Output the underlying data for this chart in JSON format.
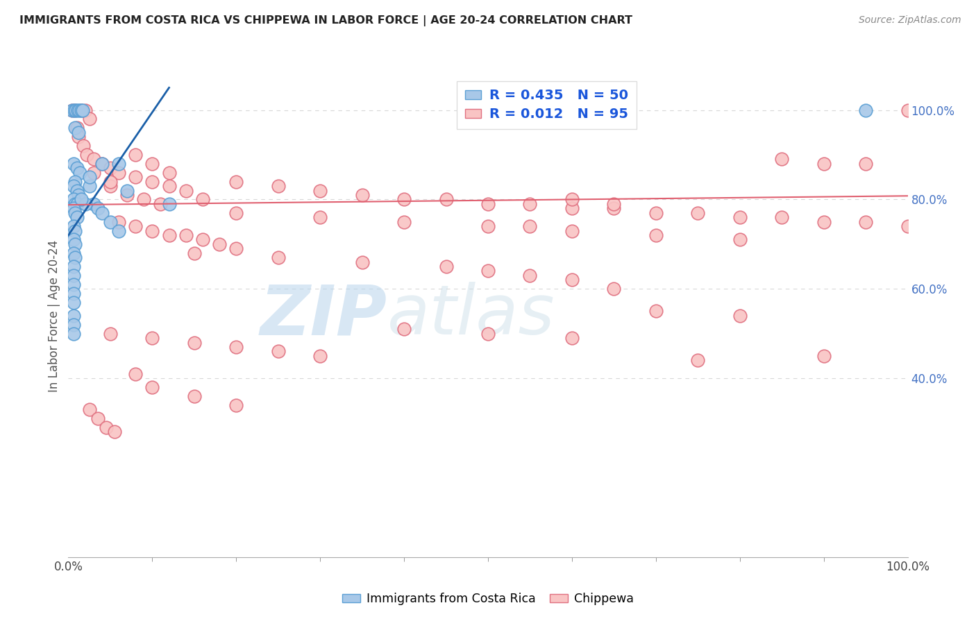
{
  "title": "IMMIGRANTS FROM COSTA RICA VS CHIPPEWA IN LABOR FORCE | AGE 20-24 CORRELATION CHART",
  "source": "Source: ZipAtlas.com",
  "ylabel": "In Labor Force | Age 20-24",
  "blue_R": 0.435,
  "blue_N": 50,
  "pink_R": 0.012,
  "pink_N": 95,
  "legend_label_blue": "Immigrants from Costa Rica",
  "legend_label_pink": "Chippewa",
  "blue_fill": "#a8c8e8",
  "blue_edge": "#5a9fd4",
  "pink_fill": "#f9c4c4",
  "pink_edge": "#e07080",
  "blue_line_color": "#1a5fa8",
  "pink_line_color": "#e06070",
  "watermark_zip": "ZIP",
  "watermark_atlas": "atlas",
  "bg_color": "#ffffff",
  "grid_color": "#d8d8d8",
  "axis_label_color": "#555555",
  "right_tick_color": "#4472c4",
  "blue_points_x": [
    0.005,
    0.007,
    0.009,
    0.011,
    0.013,
    0.015,
    0.017,
    0.008,
    0.012,
    0.006,
    0.01,
    0.014,
    0.008,
    0.006,
    0.01,
    0.012,
    0.006,
    0.008,
    0.01,
    0.006,
    0.008,
    0.01,
    0.006,
    0.008,
    0.006,
    0.008,
    0.006,
    0.008,
    0.006,
    0.006,
    0.006,
    0.006,
    0.006,
    0.006,
    0.006,
    0.006,
    0.025,
    0.03,
    0.035,
    0.04,
    0.05,
    0.06,
    0.04,
    0.025,
    0.06,
    0.07,
    0.12,
    0.02,
    0.015,
    0.95
  ],
  "blue_points_y": [
    1.0,
    1.0,
    1.0,
    1.0,
    1.0,
    1.0,
    1.0,
    0.96,
    0.95,
    0.88,
    0.87,
    0.86,
    0.84,
    0.83,
    0.82,
    0.81,
    0.8,
    0.79,
    0.79,
    0.78,
    0.77,
    0.76,
    0.74,
    0.73,
    0.71,
    0.7,
    0.68,
    0.67,
    0.65,
    0.63,
    0.61,
    0.59,
    0.57,
    0.54,
    0.52,
    0.5,
    0.83,
    0.79,
    0.78,
    0.77,
    0.75,
    0.73,
    0.88,
    0.85,
    0.88,
    0.82,
    0.79,
    0.79,
    0.8,
    1.0
  ],
  "pink_points_x": [
    0.005,
    0.008,
    0.015,
    0.02,
    0.025,
    0.01,
    0.012,
    0.018,
    0.022,
    0.03,
    0.04,
    0.05,
    0.06,
    0.08,
    0.1,
    0.12,
    0.14,
    0.16,
    0.08,
    0.1,
    0.12,
    0.05,
    0.07,
    0.09,
    0.11,
    0.03,
    0.05,
    0.2,
    0.25,
    0.3,
    0.35,
    0.4,
    0.45,
    0.5,
    0.55,
    0.6,
    0.65,
    0.7,
    0.75,
    0.8,
    0.85,
    0.9,
    0.95,
    1.0,
    0.2,
    0.3,
    0.4,
    0.5,
    0.55,
    0.6,
    0.7,
    0.8,
    0.15,
    0.25,
    0.35,
    0.45,
    0.5,
    0.55,
    0.6,
    0.06,
    0.08,
    0.1,
    0.12,
    0.14,
    0.16,
    0.18,
    0.2,
    0.05,
    0.1,
    0.15,
    0.2,
    0.25,
    0.3,
    0.4,
    0.5,
    0.6,
    0.7,
    0.8,
    0.9,
    0.85,
    0.9,
    0.95,
    1.0,
    0.6,
    0.65,
    0.1,
    0.15,
    0.2,
    0.08,
    0.025,
    0.035,
    0.045,
    0.055,
    0.65,
    0.75
  ],
  "pink_points_y": [
    1.0,
    1.0,
    1.0,
    1.0,
    0.98,
    0.96,
    0.94,
    0.92,
    0.9,
    0.89,
    0.88,
    0.87,
    0.86,
    0.85,
    0.84,
    0.83,
    0.82,
    0.8,
    0.9,
    0.88,
    0.86,
    0.83,
    0.81,
    0.8,
    0.79,
    0.86,
    0.84,
    0.84,
    0.83,
    0.82,
    0.81,
    0.8,
    0.8,
    0.79,
    0.79,
    0.78,
    0.78,
    0.77,
    0.77,
    0.76,
    0.76,
    0.75,
    0.75,
    0.74,
    0.77,
    0.76,
    0.75,
    0.74,
    0.74,
    0.73,
    0.72,
    0.71,
    0.68,
    0.67,
    0.66,
    0.65,
    0.64,
    0.63,
    0.62,
    0.75,
    0.74,
    0.73,
    0.72,
    0.72,
    0.71,
    0.7,
    0.69,
    0.5,
    0.49,
    0.48,
    0.47,
    0.46,
    0.45,
    0.51,
    0.5,
    0.49,
    0.55,
    0.54,
    0.45,
    0.89,
    0.88,
    0.88,
    1.0,
    0.8,
    0.79,
    0.38,
    0.36,
    0.34,
    0.41,
    0.33,
    0.31,
    0.29,
    0.28,
    0.6,
    0.44
  ]
}
